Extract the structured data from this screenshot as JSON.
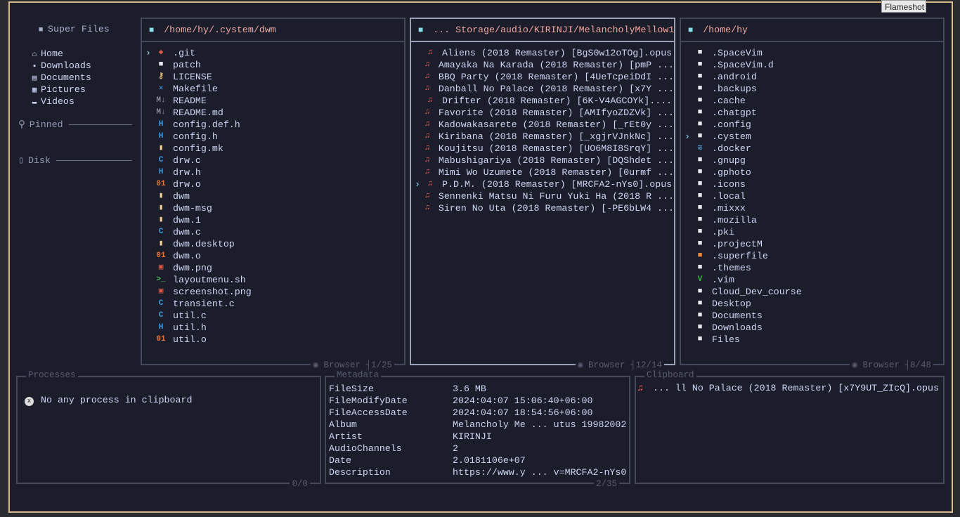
{
  "tooltip": "Flameshot",
  "sidebar": {
    "title": "Super Files",
    "items": [
      {
        "label": "Home",
        "icon": "home-icon"
      },
      {
        "label": "Downloads",
        "icon": "download-icon"
      },
      {
        "label": "Documents",
        "icon": "document-icon"
      },
      {
        "label": "Pictures",
        "icon": "picture-icon"
      },
      {
        "label": "Videos",
        "icon": "video-icon"
      }
    ],
    "pinned": "Pinned",
    "disk": "Disk"
  },
  "panels": [
    {
      "path": "/home/hy/.cystem/dwm",
      "footer_mode": "Browser",
      "footer_count": "1/25",
      "cursor": 0,
      "files": [
        {
          "n": ".git",
          "i": "◆",
          "c": "#e05a45"
        },
        {
          "n": "patch",
          "i": "■",
          "c": "#e8e8f0"
        },
        {
          "n": "LICENSE",
          "i": "⚷",
          "c": "#e5c07b"
        },
        {
          "n": "Makefile",
          "i": "✕",
          "c": "#3b9ee8"
        },
        {
          "n": "README",
          "i": "M↓",
          "c": "#8a8a99"
        },
        {
          "n": "README.md",
          "i": "M↓",
          "c": "#8a8a99"
        },
        {
          "n": "config.def.h",
          "i": "H",
          "c": "#3b9ee8"
        },
        {
          "n": "config.h",
          "i": "H",
          "c": "#3b9ee8"
        },
        {
          "n": "config.mk",
          "i": "▮",
          "c": "#f0d39a"
        },
        {
          "n": "drw.c",
          "i": "C",
          "c": "#3b9ee8"
        },
        {
          "n": "drw.h",
          "i": "H",
          "c": "#3b9ee8"
        },
        {
          "n": "drw.o",
          "i": "01",
          "c": "#e8753f"
        },
        {
          "n": "dwm",
          "i": "▮",
          "c": "#f0d39a"
        },
        {
          "n": "dwm-msg",
          "i": "▮",
          "c": "#f0d39a"
        },
        {
          "n": "dwm.1",
          "i": "▮",
          "c": "#f0d39a"
        },
        {
          "n": "dwm.c",
          "i": "C",
          "c": "#3b9ee8"
        },
        {
          "n": "dwm.desktop",
          "i": "▮",
          "c": "#f0d39a"
        },
        {
          "n": "dwm.o",
          "i": "01",
          "c": "#e8753f"
        },
        {
          "n": "dwm.png",
          "i": "▣",
          "c": "#e05a45"
        },
        {
          "n": "layoutmenu.sh",
          "i": ">_",
          "c": "#4cc26a"
        },
        {
          "n": "screenshot.png",
          "i": "▣",
          "c": "#e05a45"
        },
        {
          "n": "transient.c",
          "i": "C",
          "c": "#3b9ee8"
        },
        {
          "n": "util.c",
          "i": "C",
          "c": "#3b9ee8"
        },
        {
          "n": "util.h",
          "i": "H",
          "c": "#3b9ee8"
        },
        {
          "n": "util.o",
          "i": "01",
          "c": "#e8753f"
        }
      ]
    },
    {
      "path": "... Storage/audio/KIRINJI/MelancholyMellow1",
      "footer_mode": "Browser",
      "footer_count": "12/14",
      "cursor": 11,
      "files": [
        {
          "n": "Aliens (2018 Remaster) [BgS0w12oTOg].opus",
          "i": "♫",
          "c": "#f0625a"
        },
        {
          "n": "Amayaka Na Karada (2018 Remaster) [pmP ...",
          "i": "♫",
          "c": "#f0625a"
        },
        {
          "n": "BBQ Party (2018 Remaster) [4UeTcpeiDdI ...",
          "i": "♫",
          "c": "#f0625a"
        },
        {
          "n": "Danball No Palace (2018 Remaster) [x7Y ...",
          "i": "♫",
          "c": "#f0625a"
        },
        {
          "n": "Drifter (2018 Remaster) [6K-V4AGCOYk]....",
          "i": "♫",
          "c": "#f0625a"
        },
        {
          "n": "Favorite (2018 Remaster) [AMIfyoZDZVk] ...",
          "i": "♫",
          "c": "#f0625a"
        },
        {
          "n": "Kadowakasarete (2018 Remaster) [_rEt0y ...",
          "i": "♫",
          "c": "#f0625a"
        },
        {
          "n": "Kiribana (2018 Remaster) [_xgjrVJnkNc] ...",
          "i": "♫",
          "c": "#f0625a"
        },
        {
          "n": "Koujitsu (2018 Remaster) [UO6M8I8SrqY] ...",
          "i": "♫",
          "c": "#f0625a"
        },
        {
          "n": "Mabushigariya (2018 Remaster) [DQShdet ...",
          "i": "♫",
          "c": "#f0625a"
        },
        {
          "n": "Mimi Wo Uzumete (2018 Remaster) [0urmf ...",
          "i": "♫",
          "c": "#f0625a"
        },
        {
          "n": "P.D.M. (2018 Remaster) [MRCFA2-nYs0].opus",
          "i": "♫",
          "c": "#f0625a"
        },
        {
          "n": "Sennenki Matsu Ni Furu Yuki Ha (2018 R ...",
          "i": "♫",
          "c": "#f0625a"
        },
        {
          "n": "Siren No Uta (2018 Remaster) [-PE6bLW4 ...",
          "i": "♫",
          "c": "#f0625a"
        }
      ]
    },
    {
      "path": "/home/hy",
      "footer_mode": "Browser",
      "footer_count": "8/48",
      "cursor": 7,
      "files": [
        {
          "n": ".SpaceVim",
          "i": "■",
          "c": "#e8e8f0"
        },
        {
          "n": ".SpaceVim.d",
          "i": "■",
          "c": "#e8e8f0"
        },
        {
          "n": ".android",
          "i": "■",
          "c": "#e8e8f0"
        },
        {
          "n": ".backups",
          "i": "■",
          "c": "#e8e8f0"
        },
        {
          "n": ".cache",
          "i": "■",
          "c": "#e8e8f0"
        },
        {
          "n": ".chatgpt",
          "i": "■",
          "c": "#e8e8f0"
        },
        {
          "n": ".config",
          "i": "■",
          "c": "#e8e8f0"
        },
        {
          "n": ".cystem",
          "i": "■",
          "c": "#e8e8f0"
        },
        {
          "n": ".docker",
          "i": "≋",
          "c": "#4aa0d8"
        },
        {
          "n": ".gnupg",
          "i": "■",
          "c": "#e8e8f0"
        },
        {
          "n": ".gphoto",
          "i": "■",
          "c": "#e8e8f0"
        },
        {
          "n": ".icons",
          "i": "■",
          "c": "#e8e8f0"
        },
        {
          "n": ".local",
          "i": "■",
          "c": "#e8e8f0"
        },
        {
          "n": ".mixxx",
          "i": "■",
          "c": "#e8e8f0"
        },
        {
          "n": ".mozilla",
          "i": "■",
          "c": "#e8e8f0"
        },
        {
          "n": ".pki",
          "i": "■",
          "c": "#e8e8f0"
        },
        {
          "n": ".projectM",
          "i": "■",
          "c": "#e8e8f0"
        },
        {
          "n": ".superfile",
          "i": "■",
          "c": "#f08a3a"
        },
        {
          "n": ".themes",
          "i": "■",
          "c": "#e8e8f0"
        },
        {
          "n": ".vim",
          "i": "V",
          "c": "#3cb84a"
        },
        {
          "n": "Cloud_Dev_course",
          "i": "■",
          "c": "#e8e8f0"
        },
        {
          "n": "Desktop",
          "i": "■",
          "c": "#e8e8f0"
        },
        {
          "n": "Documents",
          "i": "■",
          "c": "#e8e8f0"
        },
        {
          "n": "Downloads",
          "i": "■",
          "c": "#e8e8f0"
        },
        {
          "n": "Files",
          "i": "■",
          "c": "#e8e8f0"
        }
      ]
    }
  ],
  "processes": {
    "label": "Processes",
    "message": "No any process in clipboard",
    "count": "0/0"
  },
  "metadata": {
    "label": "Metadata",
    "count": "2/35",
    "rows": [
      [
        "FileSize",
        "3.6 MB"
      ],
      [
        "FileModifyDate",
        "2024:04:07 15:06:40+06:00"
      ],
      [
        "FileAccessDate",
        "2024:04:07 18:54:56+06:00"
      ],
      [
        "Album",
        "Melancholy Me ... utus 19982002"
      ],
      [
        "Artist",
        "KIRINJI"
      ],
      [
        "AudioChannels",
        "2"
      ],
      [
        "Date",
        "2.0181106e+07"
      ],
      [
        "Description",
        "https://www.y ... v=MRCFA2-nYs0"
      ]
    ]
  },
  "clipboard": {
    "label": "Clipboard",
    "items": [
      "... ll No Palace (2018 Remaster) [x7Y9UT_ZIcQ].opus"
    ]
  }
}
